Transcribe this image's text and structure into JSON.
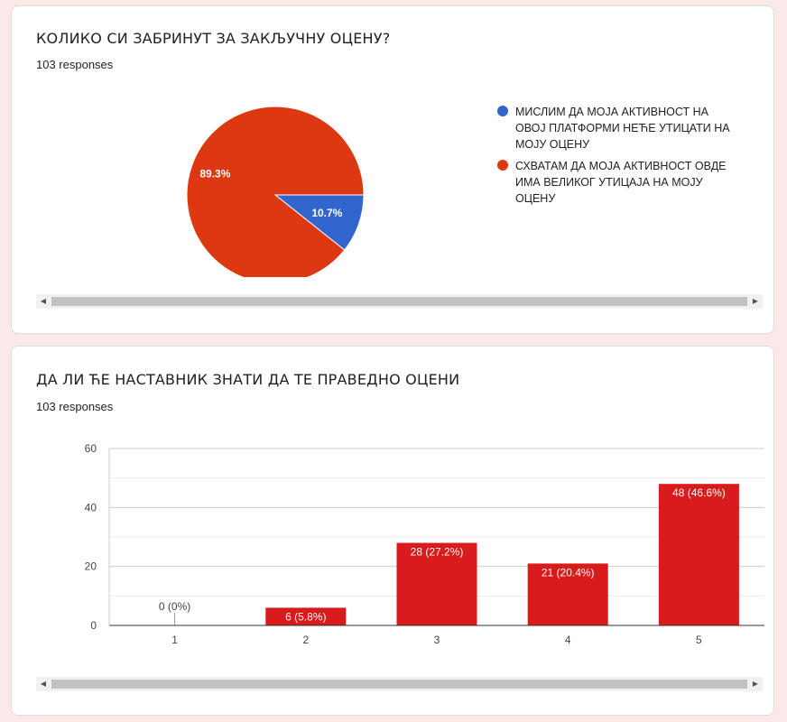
{
  "questions": [
    {
      "title": "КОЛИКО СИ ЗАБРИНУТ ЗА ЗАКЉУЧНУ ОЦЕНУ?",
      "responses": "103 responses"
    },
    {
      "title": "ДА ЛИ ЋЕ НАСТАВНИК ЗНАТИ ДА ТЕ ПРАВЕДНО ОЦЕНИ",
      "responses": "103 responses"
    }
  ],
  "colors": {
    "blue": "#3366cc",
    "orange": "#dc3912",
    "red": "#d81b1b"
  },
  "icons": {
    "scroll_left": "arrow-left-icon",
    "scroll_right": "arrow-right-icon"
  },
  "chart_data": [
    {
      "type": "pie",
      "slices": [
        {
          "label": "МИСЛИМ ДА МОЈА АКТИВНОСТ НА ОВОЈ ПЛАТФОРМИ НЕЋЕ УТИЦАТИ НА МОЈУ ОЦЕНУ",
          "value": 10.7,
          "display": "10.7%",
          "color": "#3366cc"
        },
        {
          "label": "СХВАТАМ ДА МОЈА АКТИВНОСТ ОВДЕ ИМА ВЕЛИКОГ УТИЦАЈА НА МОЈУ ОЦЕНУ",
          "value": 89.3,
          "display": "89.3%",
          "color": "#dc3912"
        }
      ],
      "legend_position": "right"
    },
    {
      "type": "bar",
      "categories": [
        "1",
        "2",
        "3",
        "4",
        "5"
      ],
      "values": [
        0,
        6,
        28,
        21,
        48
      ],
      "data_labels": [
        "0 (0%)",
        "6 (5.8%)",
        "28 (27.2%)",
        "21 (20.4%)",
        "48 (46.6%)"
      ],
      "yticks": [
        "0",
        "20",
        "40",
        "60"
      ],
      "ylim": [
        0,
        60
      ],
      "grid": true,
      "color": "#d81b1b"
    }
  ]
}
